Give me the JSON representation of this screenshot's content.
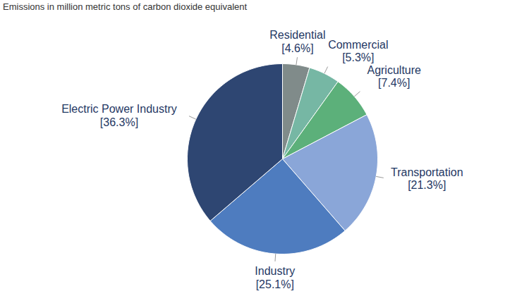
{
  "chart_data": {
    "type": "pie",
    "title": "Emissions in million metric tons of carbon dioxide equivalent",
    "categories": [
      "Residential",
      "Commercial",
      "Agriculture",
      "Transportation",
      "Industry",
      "Electric Power Industry"
    ],
    "values": [
      4.6,
      5.3,
      7.4,
      21.3,
      25.1,
      36.3
    ],
    "value_labels": [
      "[4.6%]",
      "[5.3%]",
      "[7.4%]",
      "[21.3%]",
      "[25.1%]",
      "[36.3%]"
    ],
    "colors": [
      "#808b8a",
      "#76b7a4",
      "#5cb07a",
      "#8aa6d8",
      "#4e7cbf",
      "#2e4672"
    ],
    "data_labels": true
  }
}
